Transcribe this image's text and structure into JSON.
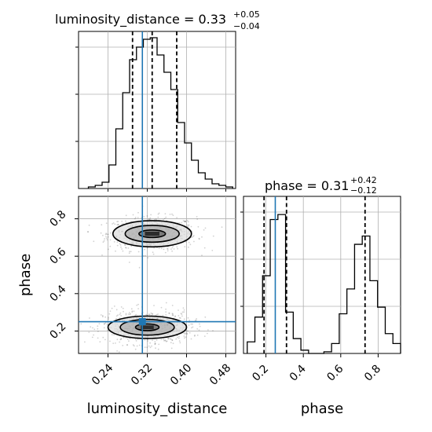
{
  "chart_data": {
    "type": "corner",
    "parameters": [
      "luminosity_distance",
      "phase"
    ],
    "truth_color": "#1f77b4",
    "truths": {
      "luminosity_distance": 0.31,
      "phase": 0.25
    },
    "panels": [
      {
        "id": "luminosity_distance_hist",
        "type": "histogram",
        "parameter": "luminosity_distance",
        "title": {
          "main": "luminosity_distance = 0.33",
          "upper": "+0.05",
          "lower": "−0.04"
        },
        "xlim": [
          0.18,
          0.5
        ],
        "bin_edges": [
          0.2,
          0.214,
          0.228,
          0.242,
          0.256,
          0.27,
          0.284,
          0.298,
          0.312,
          0.326,
          0.34,
          0.354,
          0.368,
          0.382,
          0.396,
          0.41,
          0.424,
          0.438,
          0.452,
          0.466,
          0.48,
          0.494
        ],
        "counts": [
          1,
          2,
          4,
          15,
          38,
          61,
          82,
          90,
          95,
          96,
          85,
          74,
          63,
          42,
          29,
          18,
          10,
          6,
          3,
          2,
          1
        ],
        "ymax": 100,
        "quantiles": [
          0.29,
          0.33,
          0.38
        ]
      },
      {
        "id": "phase_hist",
        "type": "histogram",
        "parameter": "phase",
        "title": {
          "main": "phase = 0.31",
          "upper": "+0.42",
          "lower": "−0.12"
        },
        "xlim": [
          0.08,
          0.92
        ],
        "xticks": [
          0.2,
          0.4,
          0.6,
          0.8
        ],
        "xtick_labels": [
          "0.2",
          "0.4",
          "0.6",
          "0.8"
        ],
        "xlabel": "phase",
        "bin_edges": [
          0.1,
          0.141,
          0.182,
          0.223,
          0.264,
          0.305,
          0.346,
          0.387,
          0.428,
          0.469,
          0.51,
          0.551,
          0.592,
          0.633,
          0.674,
          0.715,
          0.756,
          0.797,
          0.838,
          0.879,
          0.92
        ],
        "counts": [
          7,
          22,
          47,
          81,
          84,
          25,
          9,
          2,
          0,
          0,
          1,
          6,
          24,
          39,
          66,
          71,
          44,
          28,
          12,
          6
        ],
        "ymax": 95,
        "quantiles": [
          0.19,
          0.31,
          0.73
        ]
      },
      {
        "id": "joint_2d",
        "type": "hist2d",
        "x_parameter": "luminosity_distance",
        "y_parameter": "phase",
        "xlim": [
          0.18,
          0.5
        ],
        "ylim": [
          0.08,
          0.92
        ],
        "xticks": [
          0.24,
          0.32,
          0.4,
          0.48
        ],
        "xtick_labels": [
          "0.24",
          "0.32",
          "0.40",
          "0.48"
        ],
        "yticks": [
          0.2,
          0.4,
          0.6,
          0.8
        ],
        "ytick_labels": [
          "0.2",
          "0.4",
          "0.6",
          "0.8"
        ],
        "xlabel": "luminosity_distance",
        "ylabel": "phase",
        "modes": [
          {
            "center": [
              0.33,
              0.72
            ],
            "contours": [
              [
                0.027,
                0.02
              ],
              [
                0.055,
                0.045
              ],
              [
                0.08,
                0.07
              ]
            ]
          },
          {
            "center": [
              0.32,
              0.22
            ],
            "contours": [
              [
                0.024,
                0.018
              ],
              [
                0.055,
                0.042
              ],
              [
                0.08,
                0.06
              ]
            ]
          }
        ],
        "truth_marker": [
          0.31,
          0.25
        ]
      }
    ]
  }
}
